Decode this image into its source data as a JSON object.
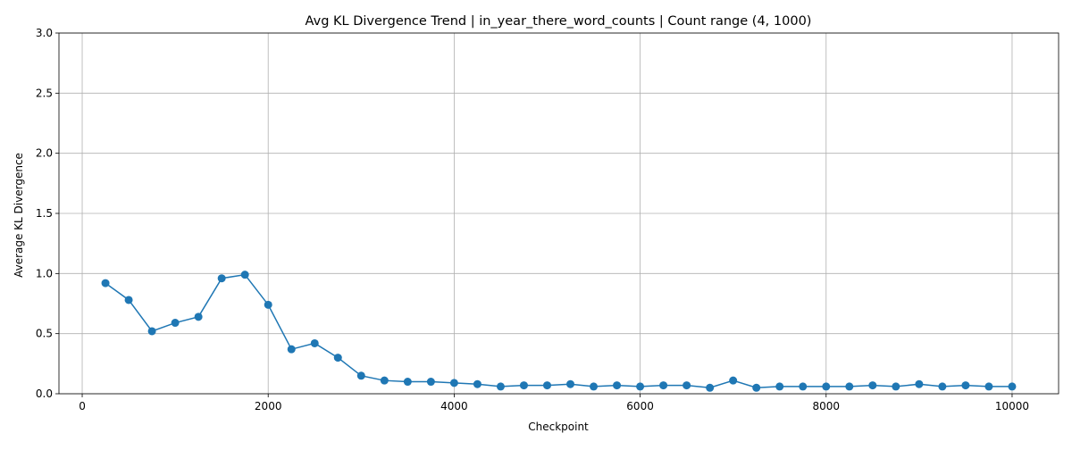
{
  "chart_data": {
    "type": "line",
    "title": "Avg KL Divergence Trend | in_year_there_word_counts | Count range (4, 1000)",
    "xlabel": "Checkpoint",
    "ylabel": "Average KL Divergence",
    "xlim": [
      -250,
      10500
    ],
    "ylim": [
      0,
      3.0
    ],
    "xticks": [
      0,
      2000,
      4000,
      6000,
      8000,
      10000
    ],
    "xtick_labels": [
      "0",
      "2000",
      "4000",
      "6000",
      "8000",
      "10000"
    ],
    "yticks": [
      0,
      0.5,
      1.0,
      1.5,
      2.0,
      2.5,
      3.0
    ],
    "ytick_labels": [
      "0.0",
      "0.5",
      "1.0",
      "1.5",
      "2.0",
      "2.5",
      "3.0"
    ],
    "grid": true,
    "color": "#1f77b4",
    "series": [
      {
        "x": [
          250,
          500,
          750,
          1000,
          1250,
          1500,
          1750,
          2000,
          2250,
          2500,
          2750,
          3000,
          3250,
          3500,
          3750,
          4000,
          4250,
          4500,
          4750,
          5000,
          5250,
          5500,
          5750,
          6000,
          6250,
          6500,
          6750,
          7000,
          7250,
          7500,
          7750,
          8000,
          8250,
          8500,
          8750,
          9000,
          9250,
          9500,
          9750,
          10000
        ],
        "y": [
          0.92,
          0.78,
          0.52,
          0.59,
          0.64,
          0.96,
          0.99,
          0.74,
          0.37,
          0.42,
          0.3,
          0.15,
          0.11,
          0.1,
          0.1,
          0.09,
          0.08,
          0.06,
          0.07,
          0.07,
          0.08,
          0.06,
          0.07,
          0.06,
          0.07,
          0.07,
          0.05,
          0.11,
          0.05,
          0.06,
          0.06,
          0.06,
          0.06,
          0.07,
          0.06,
          0.08,
          0.06,
          0.07,
          0.06,
          0.06
        ]
      }
    ]
  }
}
